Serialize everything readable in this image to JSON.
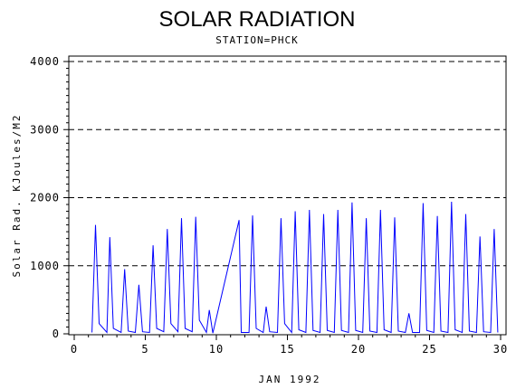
{
  "chart_data": {
    "type": "line",
    "title": "SOLAR RADIATION",
    "subtitle": "STATION=PHCK",
    "xlabel": "JAN 1992",
    "ylabel": "Solar Rad. KJoules/M2",
    "xlim": [
      0,
      30
    ],
    "ylim": [
      0,
      4000
    ],
    "x_ticks": [
      0,
      5,
      10,
      15,
      20,
      25,
      30
    ],
    "y_ticks": [
      0,
      1000,
      2000,
      3000,
      4000
    ],
    "grid": "horizontal dashed",
    "series": [
      {
        "color": "#0000ff",
        "points": [
          [
            1.25,
            20
          ],
          [
            1.5,
            1600
          ],
          [
            1.75,
            150
          ],
          [
            2.3,
            20
          ],
          [
            2.5,
            1420
          ],
          [
            2.75,
            80
          ],
          [
            3.3,
            20
          ],
          [
            3.55,
            950
          ],
          [
            3.8,
            40
          ],
          [
            4.3,
            20
          ],
          [
            4.55,
            720
          ],
          [
            4.8,
            30
          ],
          [
            5.3,
            20
          ],
          [
            5.55,
            1300
          ],
          [
            5.8,
            80
          ],
          [
            6.3,
            30
          ],
          [
            6.55,
            1540
          ],
          [
            6.8,
            150
          ],
          [
            7.3,
            30
          ],
          [
            7.55,
            1700
          ],
          [
            7.8,
            80
          ],
          [
            8.3,
            30
          ],
          [
            8.55,
            1720
          ],
          [
            8.8,
            200
          ],
          [
            9.3,
            20
          ],
          [
            9.5,
            350
          ],
          [
            9.75,
            10
          ],
          [
            11.6,
            1670
          ],
          [
            11.75,
            20
          ],
          [
            12.3,
            20
          ],
          [
            12.55,
            1740
          ],
          [
            12.8,
            80
          ],
          [
            13.3,
            20
          ],
          [
            13.5,
            400
          ],
          [
            13.75,
            30
          ],
          [
            14.3,
            20
          ],
          [
            14.55,
            1700
          ],
          [
            14.8,
            150
          ],
          [
            15.3,
            20
          ],
          [
            15.55,
            1800
          ],
          [
            15.8,
            60
          ],
          [
            16.3,
            20
          ],
          [
            16.55,
            1820
          ],
          [
            16.8,
            50
          ],
          [
            17.3,
            20
          ],
          [
            17.55,
            1760
          ],
          [
            17.8,
            50
          ],
          [
            18.3,
            20
          ],
          [
            18.55,
            1820
          ],
          [
            18.8,
            50
          ],
          [
            19.3,
            20
          ],
          [
            19.55,
            1930
          ],
          [
            19.8,
            50
          ],
          [
            20.3,
            20
          ],
          [
            20.55,
            1700
          ],
          [
            20.8,
            40
          ],
          [
            21.3,
            20
          ],
          [
            21.55,
            1820
          ],
          [
            21.8,
            60
          ],
          [
            22.3,
            20
          ],
          [
            22.55,
            1710
          ],
          [
            22.8,
            40
          ],
          [
            23.3,
            20
          ],
          [
            23.55,
            300
          ],
          [
            23.8,
            20
          ],
          [
            24.3,
            20
          ],
          [
            24.55,
            1920
          ],
          [
            24.8,
            50
          ],
          [
            25.3,
            20
          ],
          [
            25.55,
            1730
          ],
          [
            25.8,
            40
          ],
          [
            26.3,
            20
          ],
          [
            26.55,
            1940
          ],
          [
            26.8,
            60
          ],
          [
            27.3,
            20
          ],
          [
            27.55,
            1760
          ],
          [
            27.8,
            40
          ],
          [
            28.3,
            20
          ],
          [
            28.55,
            1430
          ],
          [
            28.8,
            30
          ],
          [
            29.3,
            20
          ],
          [
            29.55,
            1540
          ],
          [
            29.8,
            20
          ]
        ]
      }
    ]
  }
}
